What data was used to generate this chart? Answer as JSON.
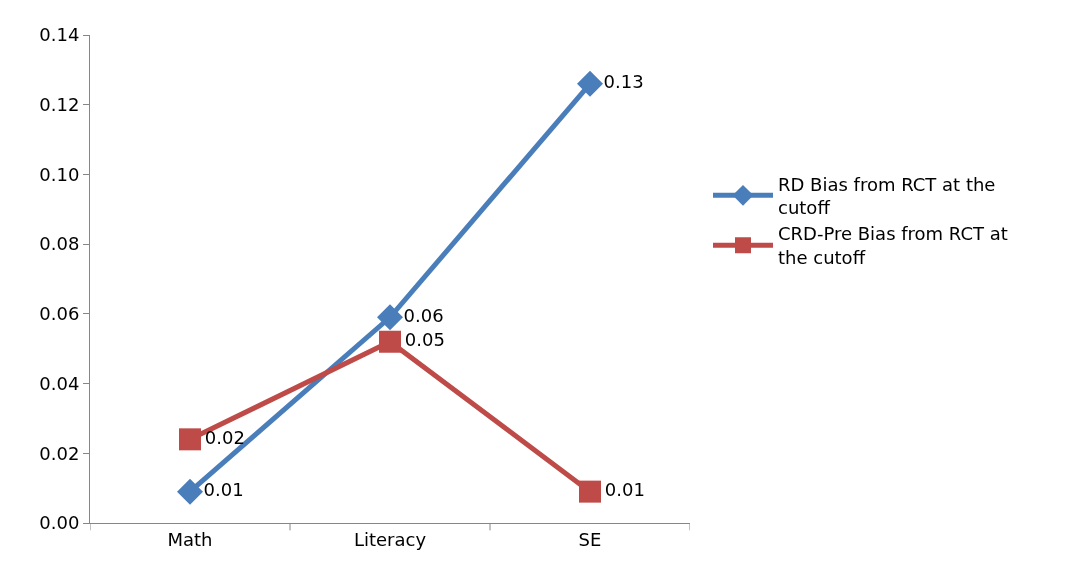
{
  "chart_data": {
    "type": "line",
    "categories": [
      "Math",
      "Literacy",
      "SE"
    ],
    "series": [
      {
        "name": "RD Bias from RCT at the cutoff",
        "color": "#4a7ebb",
        "marker": "diamond",
        "values": [
          0.009,
          0.059,
          0.126
        ],
        "value_labels": [
          "0.01",
          "0.06",
          "0.13"
        ]
      },
      {
        "name": "CRD-Pre Bias from RCT at the cutoff",
        "color": "#be4b48",
        "marker": "square",
        "values": [
          0.024,
          0.052,
          0.009
        ],
        "value_labels": [
          "0.02",
          "0.05",
          "0.01"
        ]
      }
    ],
    "ylim": [
      0,
      0.14
    ],
    "yticks": [
      {
        "value": 0,
        "label": "0.00"
      },
      {
        "value": 0.02,
        "label": "0.02"
      },
      {
        "value": 0.04,
        "label": "0.04"
      },
      {
        "value": 0.06,
        "label": "0.06"
      },
      {
        "value": 0.08,
        "label": "0.08"
      },
      {
        "value": 0.1,
        "label": "0.10"
      },
      {
        "value": 0.12,
        "label": "0.12"
      },
      {
        "value": 0.14,
        "label": "0.14"
      }
    ],
    "grid": false,
    "legend": "right",
    "line_style": "solid"
  }
}
